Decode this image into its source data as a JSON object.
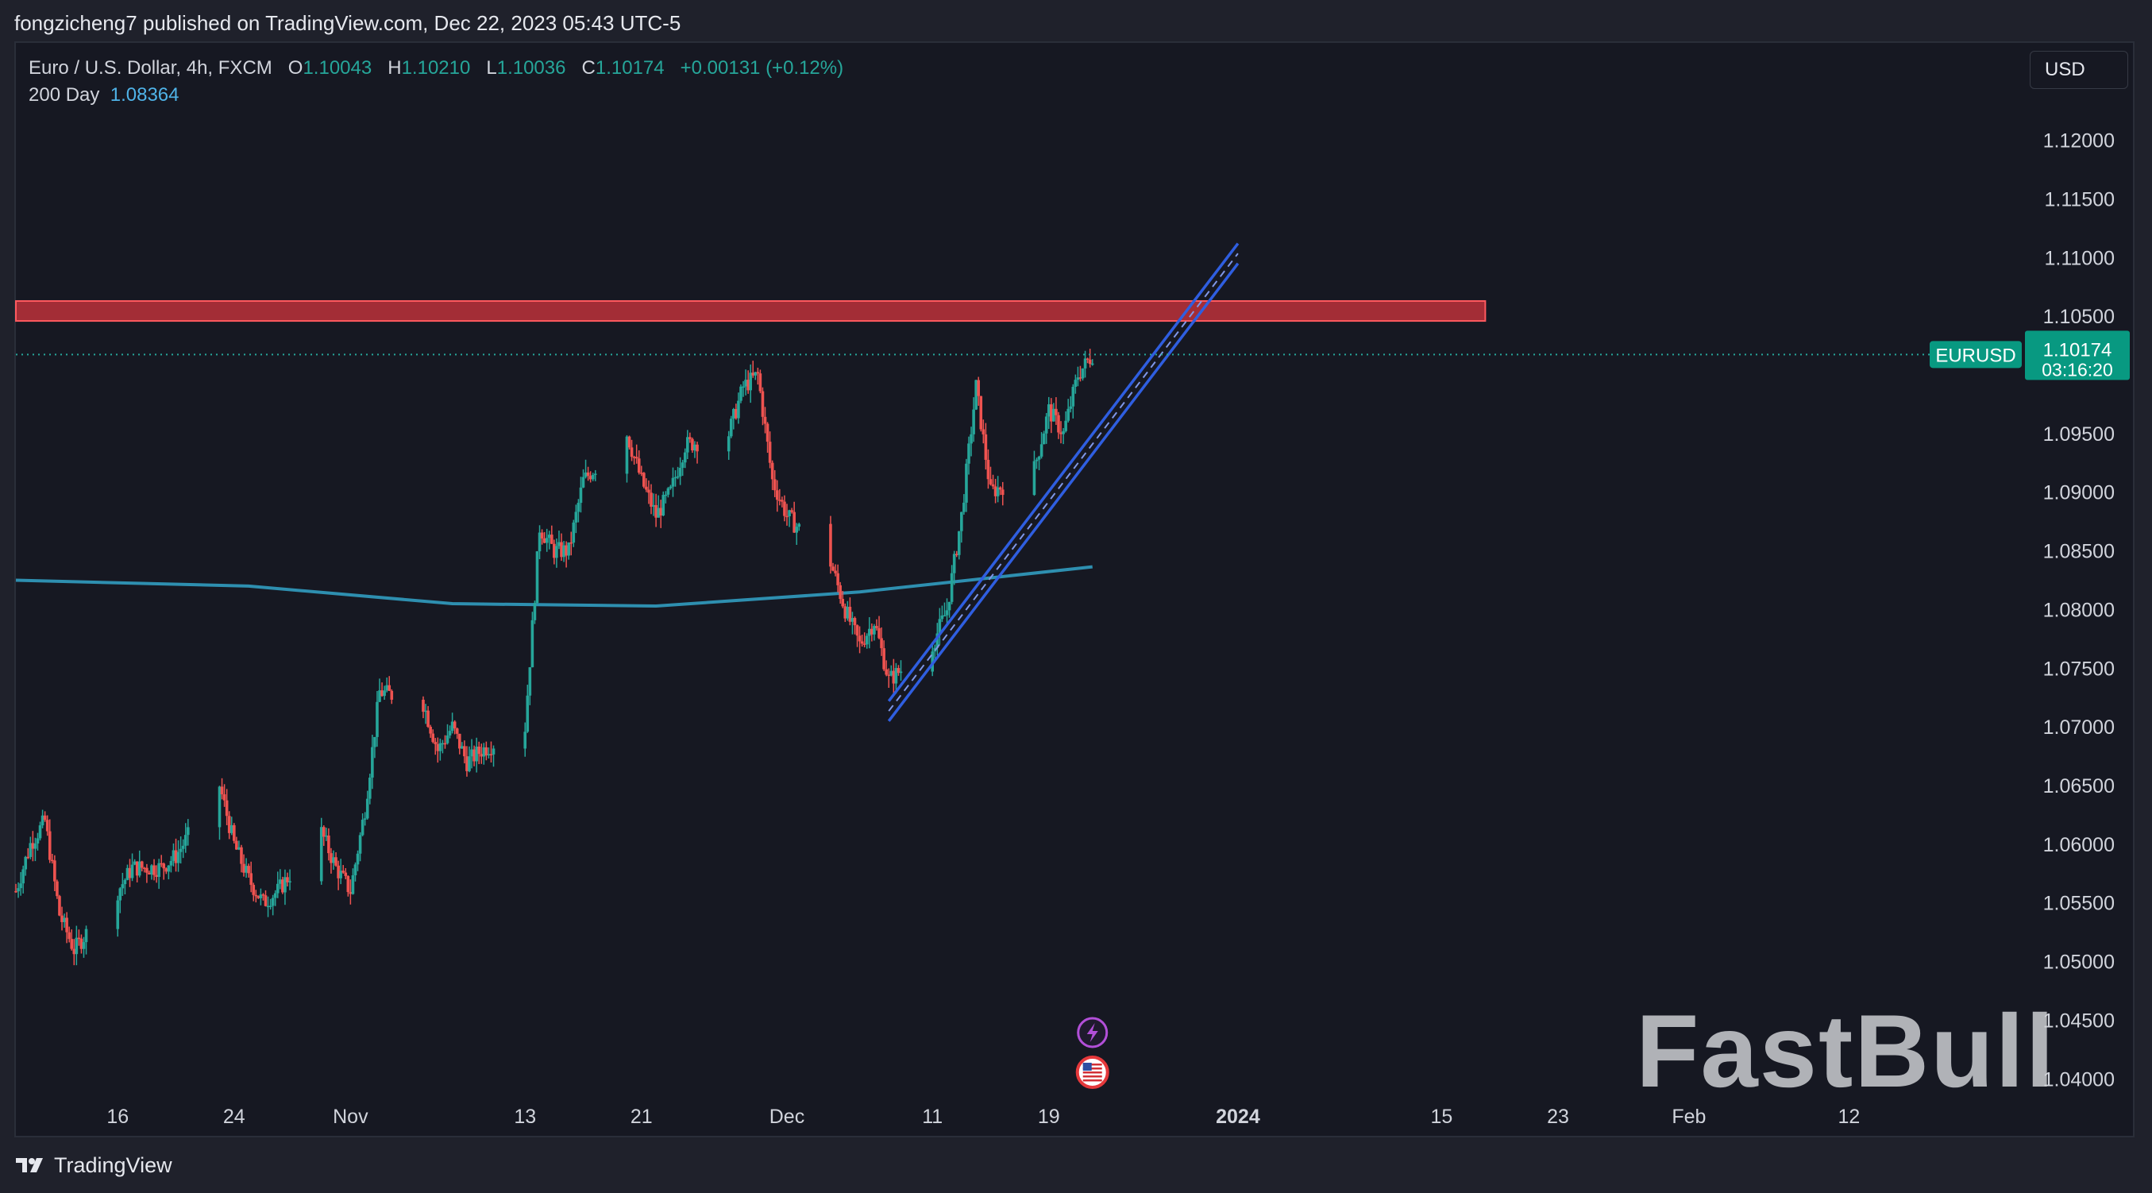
{
  "header": {
    "published_text": "fongzicheng7 published on TradingView.com, Dec 22, 2023 05:43 UTC-5"
  },
  "legend": {
    "symbol_line": "Euro / U.S. Dollar, 4h, FXCM",
    "open_label": "O",
    "open_value": "1.10043",
    "high_label": "H",
    "high_value": "1.10210",
    "low_label": "L",
    "low_value": "1.10036",
    "close_label": "C",
    "close_value": "1.10174",
    "change_text": "+0.00131 (+0.12%)",
    "ma_label": "200 Day",
    "ma_value": "1.08364"
  },
  "currency_button": {
    "label": "USD"
  },
  "price_tag": {
    "symbol": "EURUSD",
    "price": "1.10174",
    "countdown": "03:16:20"
  },
  "footer": {
    "brand": "TradingView"
  },
  "watermark": "FastBull",
  "colors": {
    "background": "#161822",
    "up": "#26a69a",
    "down": "#ef5350",
    "ma": "#2e8fb0",
    "channel": "#2f5ee0",
    "zone": "#d9363e",
    "tag": "#089981"
  },
  "chart_data": {
    "type": "candlestick",
    "symbol": "EURUSD",
    "timeframe": "4h",
    "x_ticks": [
      {
        "label": "16",
        "date": "2023-10-16"
      },
      {
        "label": "24",
        "date": "2023-10-24"
      },
      {
        "label": "Nov",
        "date": "2023-11-01"
      },
      {
        "label": "13",
        "date": "2023-11-13"
      },
      {
        "label": "21",
        "date": "2023-11-21"
      },
      {
        "label": "Dec",
        "date": "2023-12-01"
      },
      {
        "label": "11",
        "date": "2023-12-11"
      },
      {
        "label": "19",
        "date": "2023-12-19"
      },
      {
        "label": "2024",
        "date": "2024-01-01"
      },
      {
        "label": "15",
        "date": "2024-01-15"
      },
      {
        "label": "23",
        "date": "2024-01-23"
      },
      {
        "label": "Feb",
        "date": "2024-02-01"
      },
      {
        "label": "12",
        "date": "2024-02-12"
      }
    ],
    "y_ticks": [
      "1.12000",
      "1.11500",
      "1.11000",
      "1.10500",
      "1.09500",
      "1.09000",
      "1.08500",
      "1.08000",
      "1.07500",
      "1.07000",
      "1.06500",
      "1.06000",
      "1.05500",
      "1.05000",
      "1.04500",
      "1.04000"
    ],
    "y_range": [
      1.0388,
      1.1283
    ],
    "x_range": [
      "2023-10-09",
      "2024-02-17"
    ],
    "current_price": 1.10174,
    "price_path": [
      [
        "2023-10-09",
        1.056
      ],
      [
        "2023-10-10",
        1.06
      ],
      [
        "2023-10-11",
        1.062
      ],
      [
        "2023-10-12",
        1.054
      ],
      [
        "2023-10-13",
        1.051
      ],
      [
        "2023-10-16",
        1.056
      ],
      [
        "2023-10-17",
        1.058
      ],
      [
        "2023-10-18",
        1.058
      ],
      [
        "2023-10-19",
        1.058
      ],
      [
        "2023-10-20",
        1.059
      ],
      [
        "2023-10-23",
        1.065
      ],
      [
        "2023-10-24",
        1.06
      ],
      [
        "2023-10-25",
        1.057
      ],
      [
        "2023-10-26",
        1.055
      ],
      [
        "2023-10-27",
        1.056
      ],
      [
        "2023-10-30",
        1.061
      ],
      [
        "2023-10-31",
        1.058
      ],
      [
        "2023-11-01",
        1.056
      ],
      [
        "2023-11-02",
        1.063
      ],
      [
        "2023-11-03",
        1.073
      ],
      [
        "2023-11-06",
        1.072
      ],
      [
        "2023-11-07",
        1.068
      ],
      [
        "2023-11-08",
        1.07
      ],
      [
        "2023-11-09",
        1.067
      ],
      [
        "2023-11-10",
        1.068
      ],
      [
        "2023-11-13",
        1.07
      ],
      [
        "2023-11-14",
        1.087
      ],
      [
        "2023-11-15",
        1.085
      ],
      [
        "2023-11-16",
        1.085
      ],
      [
        "2023-11-17",
        1.091
      ],
      [
        "2023-11-20",
        1.095
      ],
      [
        "2023-11-21",
        1.091
      ],
      [
        "2023-11-22",
        1.088
      ],
      [
        "2023-11-23",
        1.09
      ],
      [
        "2023-11-24",
        1.094
      ],
      [
        "2023-11-27",
        1.095
      ],
      [
        "2023-11-28",
        1.099
      ],
      [
        "2023-11-29",
        1.1
      ],
      [
        "2023-11-30",
        1.091
      ],
      [
        "2023-12-01",
        1.088
      ],
      [
        "2023-12-04",
        1.084
      ],
      [
        "2023-12-05",
        1.08
      ],
      [
        "2023-12-06",
        1.077
      ],
      [
        "2023-12-07",
        1.079
      ],
      [
        "2023-12-08",
        1.074
      ],
      [
        "2023-12-11",
        1.077
      ],
      [
        "2023-12-12",
        1.08
      ],
      [
        "2023-12-13",
        1.088
      ],
      [
        "2023-12-14",
        1.099
      ],
      [
        "2023-12-15",
        1.09
      ],
      [
        "2023-12-18",
        1.092
      ],
      [
        "2023-12-19",
        1.097
      ],
      [
        "2023-12-20",
        1.095
      ],
      [
        "2023-12-21",
        1.1
      ],
      [
        "2023-12-22",
        1.10174
      ]
    ],
    "ma_200_day": {
      "label": "200 Day",
      "points": [
        [
          "2023-10-09",
          1.0825
        ],
        [
          "2023-10-25",
          1.082
        ],
        [
          "2023-11-08",
          1.0805
        ],
        [
          "2023-11-22",
          1.0803
        ],
        [
          "2023-12-06",
          1.0815
        ],
        [
          "2023-12-22",
          1.08364
        ]
      ]
    },
    "resistance_zone": {
      "from": 1.1046,
      "to": 1.1063,
      "start": "2023-10-09",
      "end": "2024-01-18"
    },
    "trend_channel": {
      "start": [
        "2023-12-08",
        1.0705
      ],
      "end": [
        "2024-01-01",
        1.1095
      ],
      "band_width": 0.0017
    },
    "event_markers": [
      {
        "date": "2023-12-22",
        "icon": "lightning-icon"
      },
      {
        "date": "2023-12-22",
        "icon": "us-flag-icon"
      }
    ]
  }
}
